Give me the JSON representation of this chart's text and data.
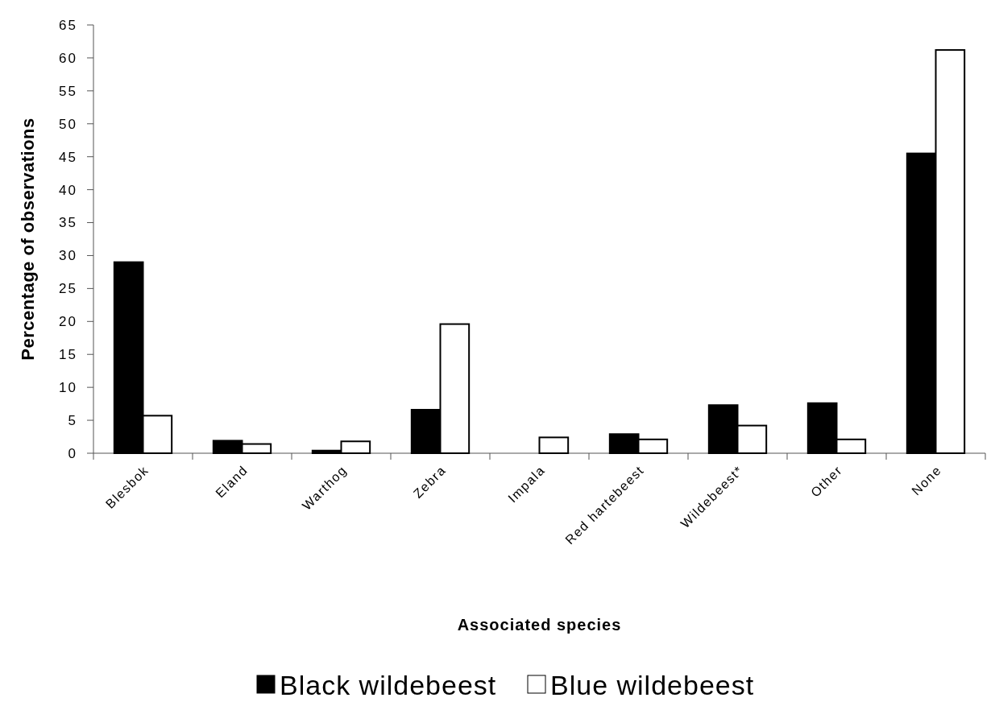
{
  "chart_data": {
    "type": "bar",
    "xlabel": "Associated species",
    "ylabel": "Percentage of observations",
    "categories": [
      "Blesbok",
      "Eland",
      "Warthog",
      "Zebra",
      "Impala",
      "Red hartebeest",
      "Wildebeest*",
      "Other",
      "None"
    ],
    "series": [
      {
        "name": "Black wildebeest",
        "color": "#000000",
        "values": [
          29.0,
          1.9,
          0.4,
          6.6,
          0,
          2.9,
          7.3,
          7.6,
          45.5
        ]
      },
      {
        "name": "Blue wildebeest",
        "color": "#ffffff",
        "values": [
          5.7,
          1.4,
          1.8,
          19.6,
          2.4,
          2.1,
          4.2,
          2.1,
          61.2
        ]
      }
    ],
    "ylim": [
      0,
      65
    ],
    "yticks": [
      0,
      5,
      10,
      15,
      20,
      25,
      30,
      35,
      40,
      45,
      50,
      55,
      60,
      65
    ],
    "grid": false,
    "legend": "bottom"
  }
}
